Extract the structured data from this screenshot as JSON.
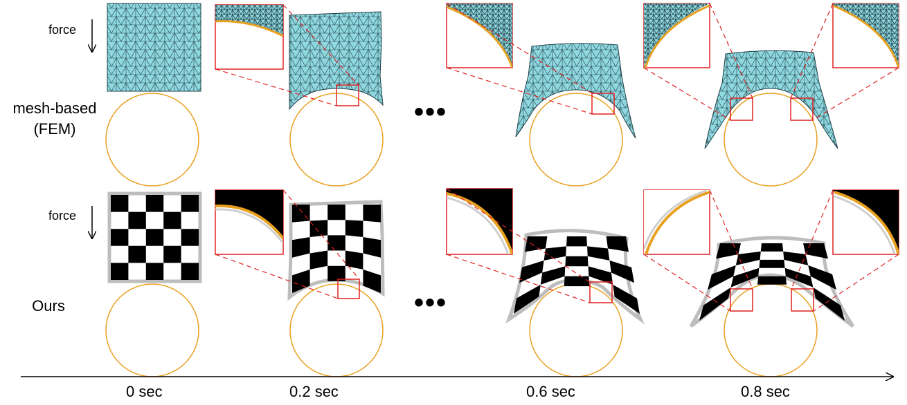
{
  "rows": [
    {
      "label_line1": "mesh-based",
      "label_line2": "(FEM)",
      "force_label": "force"
    },
    {
      "label_line1": "Ours",
      "label_line2": "",
      "force_label": "force"
    }
  ],
  "ellipsis": "•••",
  "timeline": {
    "ticks": [
      "0 sec",
      "0.2 sec",
      "0.6 sec",
      "0.8 sec"
    ]
  },
  "colors": {
    "mesh_fill": "#8fd8e0",
    "mesh_edge": "#1f3f46",
    "obstacle": "#e8a020",
    "zoom_box": "#e02020",
    "checker_dark": "#000000",
    "checker_border": "#bdbdbd"
  }
}
